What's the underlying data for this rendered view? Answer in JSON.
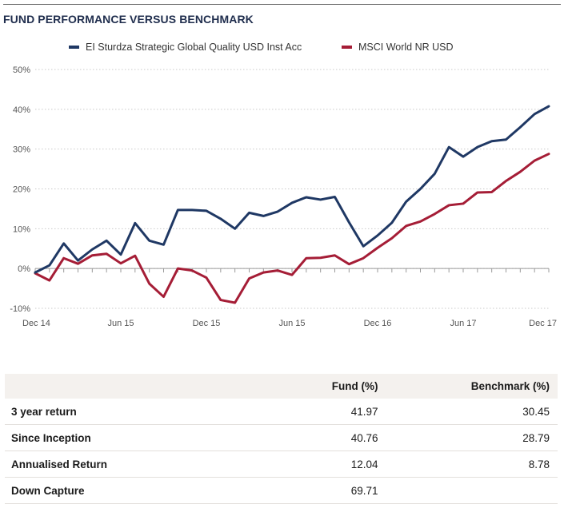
{
  "header": {
    "title": "FUND PERFORMANCE VERSUS BENCHMARK"
  },
  "chart_data": {
    "type": "line",
    "x_ticks": [
      "Dec 14",
      "Jun 15",
      "Dec 15",
      "Jun 15",
      "Dec 16",
      "Jun 17",
      "Dec 17"
    ],
    "x_range": [
      0,
      36
    ],
    "ylim": [
      -10,
      50
    ],
    "y_ticks": [
      "50%",
      "40%",
      "30%",
      "20%",
      "10%",
      "0%",
      "-10%"
    ],
    "y_tick_values": [
      50,
      40,
      30,
      20,
      10,
      0,
      -10
    ],
    "grid": "horizontal-dotted",
    "legend_position": "top",
    "series": [
      {
        "name": "EI Sturdza Strategic Global Quality USD Inst Acc",
        "color": "#1f3864",
        "x": [
          0,
          1,
          2,
          3,
          4,
          5,
          6,
          7,
          8,
          9,
          10,
          11,
          12,
          13,
          14,
          15,
          16,
          17,
          18,
          19,
          20,
          21,
          22,
          23,
          24,
          25,
          26,
          27,
          28,
          29,
          30,
          31,
          32,
          33,
          34,
          35,
          36
        ],
        "values": [
          -1.0,
          0.8,
          6.3,
          2.0,
          4.8,
          7.0,
          3.5,
          11.4,
          7.0,
          6.0,
          14.7,
          14.7,
          14.5,
          12.5,
          10.0,
          14.0,
          13.2,
          14.3,
          16.5,
          17.9,
          17.3,
          18.0,
          11.6,
          5.6,
          8.3,
          11.5,
          16.8,
          20.0,
          23.8,
          30.5,
          28.1,
          30.5,
          32.0,
          32.4,
          35.5,
          38.8,
          40.76
        ]
      },
      {
        "name": "MSCI World NR USD",
        "color": "#a51d36",
        "x": [
          0,
          1,
          2,
          3,
          4,
          5,
          6,
          7,
          8,
          9,
          10,
          11,
          12,
          13,
          14,
          15,
          16,
          17,
          18,
          19,
          20,
          21,
          22,
          23,
          24,
          25,
          26,
          27,
          28,
          29,
          30,
          31,
          32,
          33,
          34,
          35,
          36
        ],
        "values": [
          -1.2,
          -3.0,
          2.6,
          1.2,
          3.3,
          3.7,
          1.3,
          3.2,
          -3.8,
          -7.1,
          0.0,
          -0.5,
          -2.3,
          -7.9,
          -8.6,
          -2.5,
          -1.0,
          -0.5,
          -1.6,
          2.6,
          2.7,
          3.3,
          1.1,
          2.6,
          5.2,
          7.6,
          10.7,
          11.8,
          13.7,
          15.9,
          16.3,
          19.1,
          19.2,
          22.0,
          24.3,
          27.1,
          28.79
        ]
      }
    ]
  },
  "table": {
    "headers": [
      "",
      "Fund (%)",
      "Benchmark (%)"
    ],
    "rows": [
      {
        "label": "3 year return",
        "fund": "41.97",
        "benchmark": "30.45"
      },
      {
        "label": "Since Inception",
        "fund": "40.76",
        "benchmark": "28.79"
      },
      {
        "label": "Annualised Return",
        "fund": "12.04",
        "benchmark": "8.78"
      },
      {
        "label": "Down Capture",
        "fund": "69.71",
        "benchmark": ""
      }
    ]
  }
}
